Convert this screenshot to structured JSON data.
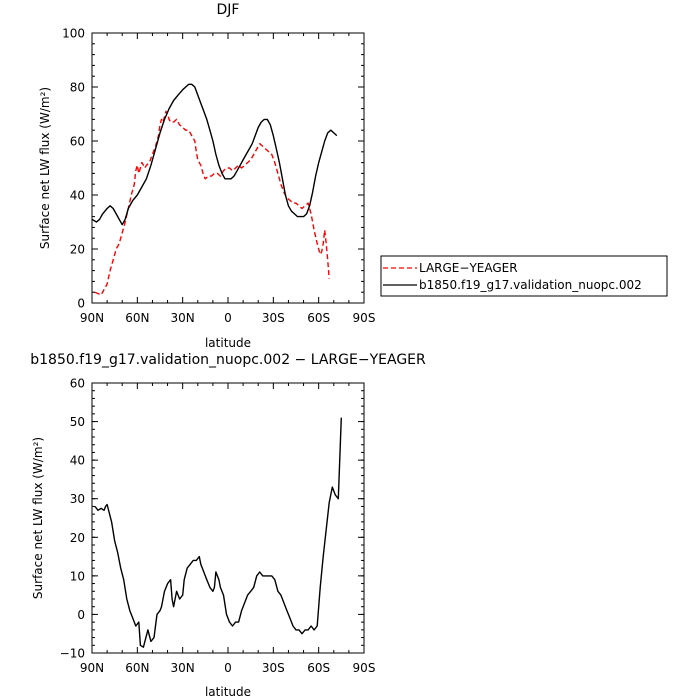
{
  "chart_data": [
    {
      "type": "line",
      "title": "DJF",
      "xlabel": "latitude",
      "ylabel": "Surface net LW flux (W/m²)",
      "xlim": [
        90,
        -90
      ],
      "ylim": [
        0,
        100
      ],
      "xticks": [
        90,
        60,
        30,
        0,
        -30,
        -60,
        -90
      ],
      "xtick_labels": [
        "90N",
        "60N",
        "30N",
        "0",
        "30S",
        "60S",
        "90S"
      ],
      "yticks": [
        0,
        20,
        40,
        60,
        80,
        100
      ],
      "ytick_labels": [
        "0",
        "20",
        "40",
        "60",
        "80",
        "100"
      ],
      "grid": false,
      "legend_position": "right",
      "series": [
        {
          "name": "LARGE−YEAGER",
          "color": "#ff0000",
          "dash": "dashed",
          "points": [
            [
              88,
              4
            ],
            [
              86,
              3.5
            ],
            [
              84,
              3
            ],
            [
              82,
              5
            ],
            [
              80,
              7
            ],
            [
              78,
              12
            ],
            [
              76,
              16
            ],
            [
              74,
              20
            ],
            [
              72,
              22
            ],
            [
              70,
              26
            ],
            [
              68,
              30
            ],
            [
              66,
              35
            ],
            [
              64,
              40
            ],
            [
              62,
              44
            ],
            [
              61,
              49
            ],
            [
              60,
              51
            ],
            [
              59,
              48
            ],
            [
              58,
              50
            ],
            [
              57,
              52
            ],
            [
              56,
              51
            ],
            [
              55,
              50
            ],
            [
              54,
              51
            ],
            [
              52,
              52
            ],
            [
              50,
              55
            ],
            [
              48,
              58
            ],
            [
              46,
              62
            ],
            [
              45,
              66
            ],
            [
              44,
              68
            ],
            [
              43,
              67
            ],
            [
              42,
              69
            ],
            [
              41,
              71
            ],
            [
              40,
              70
            ],
            [
              39,
              68
            ],
            [
              38,
              67
            ],
            [
              36,
              67
            ],
            [
              34,
              68
            ],
            [
              33,
              67
            ],
            [
              32,
              66
            ],
            [
              30,
              65
            ],
            [
              28,
              64
            ],
            [
              26,
              64
            ],
            [
              24,
              62
            ],
            [
              22,
              60
            ],
            [
              21,
              56
            ],
            [
              20,
              53
            ],
            [
              18,
              51
            ],
            [
              17,
              49
            ],
            [
              16,
              47
            ],
            [
              15,
              46
            ],
            [
              13,
              47
            ],
            [
              11,
              47
            ],
            [
              9,
              48
            ],
            [
              7,
              48
            ],
            [
              5,
              47
            ],
            [
              3,
              49
            ],
            [
              1,
              50
            ],
            [
              -1,
              50
            ],
            [
              -3,
              49
            ],
            [
              -5,
              50
            ],
            [
              -7,
              51
            ],
            [
              -9,
              50
            ],
            [
              -11,
              51
            ],
            [
              -13,
              52
            ],
            [
              -15,
              53
            ],
            [
              -17,
              55
            ],
            [
              -19,
              57
            ],
            [
              -21,
              59
            ],
            [
              -23,
              58
            ],
            [
              -25,
              57
            ],
            [
              -27,
              56
            ],
            [
              -29,
              55
            ],
            [
              -31,
              52
            ],
            [
              -33,
              48
            ],
            [
              -35,
              44
            ],
            [
              -37,
              41
            ],
            [
              -39,
              39
            ],
            [
              -41,
              38
            ],
            [
              -43,
              37
            ],
            [
              -45,
              37
            ],
            [
              -47,
              36
            ],
            [
              -49,
              35
            ],
            [
              -51,
              36
            ],
            [
              -53,
              37
            ],
            [
              -55,
              33
            ],
            [
              -57,
              27
            ],
            [
              -59,
              22
            ],
            [
              -61,
              18
            ],
            [
              -62,
              19
            ],
            [
              -63,
              22
            ],
            [
              -64,
              27
            ],
            [
              -65,
              22
            ],
            [
              -66,
              16
            ],
            [
              -67,
              9
            ]
          ]
        },
        {
          "name": "b1850.f19_g17.validation_nuopc.002",
          "color": "#000000",
          "dash": "solid",
          "points": [
            [
              90,
              31
            ],
            [
              87,
              30
            ],
            [
              85,
              31
            ],
            [
              83,
              33
            ],
            [
              80,
              35
            ],
            [
              78,
              36
            ],
            [
              76,
              35
            ],
            [
              74,
              33
            ],
            [
              72,
              31
            ],
            [
              70,
              29
            ],
            [
              68,
              31
            ],
            [
              66,
              35
            ],
            [
              63,
              38
            ],
            [
              60,
              40
            ],
            [
              57,
              43
            ],
            [
              54,
              46
            ],
            [
              51,
              51
            ],
            [
              48,
              57
            ],
            [
              45,
              63
            ],
            [
              42,
              68
            ],
            [
              39,
              72
            ],
            [
              36,
              75
            ],
            [
              33,
              77
            ],
            [
              30,
              79
            ],
            [
              28,
              80
            ],
            [
              26,
              81
            ],
            [
              24,
              81
            ],
            [
              22,
              80
            ],
            [
              20,
              77
            ],
            [
              18,
              74
            ],
            [
              16,
              71
            ],
            [
              14,
              68
            ],
            [
              12,
              64
            ],
            [
              10,
              60
            ],
            [
              8,
              55
            ],
            [
              6,
              51
            ],
            [
              4,
              48
            ],
            [
              2,
              46
            ],
            [
              0,
              46
            ],
            [
              -2,
              46
            ],
            [
              -4,
              47
            ],
            [
              -6,
              49
            ],
            [
              -8,
              51
            ],
            [
              -10,
              53
            ],
            [
              -12,
              55
            ],
            [
              -14,
              57
            ],
            [
              -16,
              59
            ],
            [
              -18,
              62
            ],
            [
              -20,
              65
            ],
            [
              -22,
              67
            ],
            [
              -24,
              68
            ],
            [
              -26,
              68
            ],
            [
              -28,
              66
            ],
            [
              -30,
              62
            ],
            [
              -32,
              57
            ],
            [
              -34,
              52
            ],
            [
              -36,
              46
            ],
            [
              -38,
              40
            ],
            [
              -40,
              36
            ],
            [
              -42,
              34
            ],
            [
              -44,
              33
            ],
            [
              -46,
              32
            ],
            [
              -48,
              32
            ],
            [
              -50,
              32
            ],
            [
              -52,
              33
            ],
            [
              -54,
              36
            ],
            [
              -56,
              41
            ],
            [
              -58,
              47
            ],
            [
              -60,
              52
            ],
            [
              -62,
              56
            ],
            [
              -64,
              60
            ],
            [
              -66,
              63
            ],
            [
              -68,
              64
            ],
            [
              -70,
              63
            ],
            [
              -72,
              62
            ]
          ]
        }
      ]
    },
    {
      "type": "line",
      "title": "b1850.f19_g17.validation_nuopc.002 − LARGE−YEAGER",
      "xlabel": "latitude",
      "ylabel": "Surface net LW flux (W/m²)",
      "xlim": [
        90,
        -90
      ],
      "ylim": [
        -10,
        60
      ],
      "xticks": [
        90,
        60,
        30,
        0,
        -30,
        -60,
        -90
      ],
      "xtick_labels": [
        "90N",
        "60N",
        "30N",
        "0",
        "30S",
        "60S",
        "90S"
      ],
      "yticks": [
        -10,
        0,
        10,
        20,
        30,
        40,
        50,
        60
      ],
      "ytick_labels": [
        "−10",
        "0",
        "10",
        "20",
        "30",
        "40",
        "50",
        "60"
      ],
      "grid": false,
      "series": [
        {
          "color": "#000000",
          "dash": "solid",
          "points": [
            [
              88,
              28
            ],
            [
              86,
              27
            ],
            [
              84,
              27.5
            ],
            [
              82,
              27
            ],
            [
              81,
              28
            ],
            [
              80,
              28.5
            ],
            [
              79,
              27
            ],
            [
              77,
              24
            ],
            [
              75,
              19
            ],
            [
              73,
              16
            ],
            [
              71,
              12
            ],
            [
              69,
              9
            ],
            [
              67,
              4
            ],
            [
              65,
              1
            ],
            [
              63,
              -1
            ],
            [
              61,
              -3
            ],
            [
              59,
              -2
            ],
            [
              58,
              -8
            ],
            [
              56,
              -8.5
            ],
            [
              55,
              -7
            ],
            [
              53,
              -4
            ],
            [
              51,
              -7
            ],
            [
              49,
              -6
            ],
            [
              47,
              0
            ],
            [
              45,
              1
            ],
            [
              44,
              2
            ],
            [
              42,
              6
            ],
            [
              40,
              8
            ],
            [
              38,
              9
            ],
            [
              37,
              4
            ],
            [
              36,
              2
            ],
            [
              35,
              4
            ],
            [
              34,
              6
            ],
            [
              32,
              4
            ],
            [
              30,
              5
            ],
            [
              29,
              9
            ],
            [
              27,
              12
            ],
            [
              25,
              13
            ],
            [
              23,
              14
            ],
            [
              21,
              14
            ],
            [
              19,
              15
            ],
            [
              18,
              13
            ],
            [
              16,
              11
            ],
            [
              14,
              9
            ],
            [
              12,
              7
            ],
            [
              10,
              6
            ],
            [
              9,
              7
            ],
            [
              8,
              11
            ],
            [
              6,
              9
            ],
            [
              5,
              7
            ],
            [
              3,
              5
            ],
            [
              1,
              0
            ],
            [
              -1,
              -2
            ],
            [
              -3,
              -3
            ],
            [
              -5,
              -2
            ],
            [
              -7,
              -2
            ],
            [
              -9,
              1
            ],
            [
              -11,
              3
            ],
            [
              -13,
              5
            ],
            [
              -15,
              6
            ],
            [
              -17,
              7
            ],
            [
              -19,
              10
            ],
            [
              -21,
              11
            ],
            [
              -23,
              10
            ],
            [
              -25,
              10
            ],
            [
              -27,
              10
            ],
            [
              -29,
              10
            ],
            [
              -31,
              9
            ],
            [
              -33,
              6
            ],
            [
              -35,
              5
            ],
            [
              -37,
              3
            ],
            [
              -39,
              1
            ],
            [
              -41,
              -1
            ],
            [
              -43,
              -3
            ],
            [
              -45,
              -4
            ],
            [
              -47,
              -4
            ],
            [
              -49,
              -5
            ],
            [
              -51,
              -4
            ],
            [
              -53,
              -4
            ],
            [
              -55,
              -3
            ],
            [
              -57,
              -4
            ],
            [
              -59,
              -3
            ],
            [
              -61,
              7
            ],
            [
              -63,
              15
            ],
            [
              -65,
              22
            ],
            [
              -67,
              29
            ],
            [
              -69,
              33
            ],
            [
              -71,
              31
            ],
            [
              -73,
              30
            ],
            [
              -75,
              51
            ]
          ]
        }
      ]
    }
  ]
}
